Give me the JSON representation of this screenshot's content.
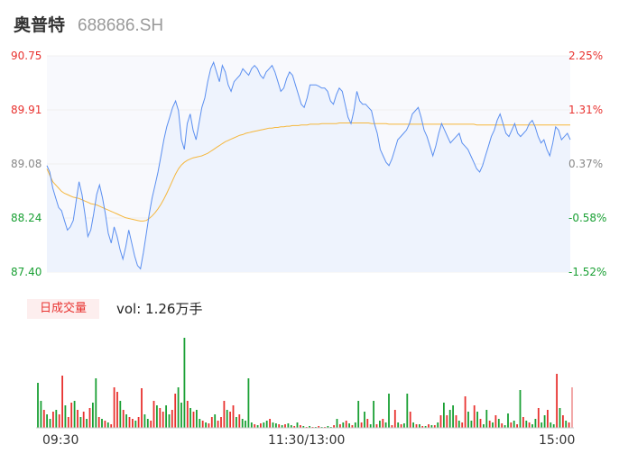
{
  "header": {
    "name": "奥普特",
    "code": "688686.SH"
  },
  "colors": {
    "price_line": "#5b8ff0",
    "avg_line": "#f5b73d",
    "up": "#e8322f",
    "down": "#1aa034",
    "neutral": "#888888"
  },
  "chart_data": {
    "type": "line",
    "price_axis": {
      "ticks": [
        "90.75",
        "89.91",
        "89.08",
        "88.24",
        "87.40"
      ],
      "range": [
        87.4,
        90.75
      ],
      "prev_close": 88.76
    },
    "pct_axis": {
      "ticks": [
        "2.25%",
        "1.31%",
        "0.37%",
        "-0.58%",
        "-1.52%"
      ]
    },
    "time_ticks": [
      "09:30",
      "11:30/13:00",
      "15:00"
    ],
    "price_series": [
      89.05,
      88.95,
      88.7,
      88.55,
      88.4,
      88.35,
      88.2,
      88.05,
      88.1,
      88.2,
      88.5,
      88.8,
      88.6,
      88.3,
      87.95,
      88.05,
      88.3,
      88.6,
      88.75,
      88.55,
      88.3,
      88.0,
      87.85,
      88.1,
      87.95,
      87.75,
      87.6,
      87.8,
      88.05,
      87.85,
      87.65,
      87.5,
      87.45,
      87.7,
      88.0,
      88.3,
      88.55,
      88.75,
      88.95,
      89.2,
      89.45,
      89.65,
      89.8,
      89.95,
      90.05,
      89.9,
      89.45,
      89.3,
      89.7,
      89.85,
      89.6,
      89.45,
      89.7,
      89.95,
      90.1,
      90.35,
      90.55,
      90.65,
      90.5,
      90.35,
      90.6,
      90.5,
      90.3,
      90.2,
      90.35,
      90.4,
      90.45,
      90.55,
      90.5,
      90.45,
      90.55,
      90.6,
      90.55,
      90.45,
      90.4,
      90.5,
      90.55,
      90.6,
      90.5,
      90.35,
      90.2,
      90.25,
      90.4,
      90.5,
      90.45,
      90.3,
      90.15,
      90.0,
      89.95,
      90.1,
      90.3,
      90.3,
      90.3,
      90.28,
      90.25,
      90.25,
      90.2,
      90.05,
      90.0,
      90.15,
      90.25,
      90.2,
      90.0,
      89.8,
      89.7,
      89.9,
      90.2,
      90.05,
      90.0,
      90.0,
      89.95,
      89.9,
      89.7,
      89.55,
      89.3,
      89.2,
      89.1,
      89.05,
      89.15,
      89.3,
      89.45,
      89.5,
      89.55,
      89.6,
      89.7,
      89.85,
      89.9,
      89.95,
      89.8,
      89.6,
      89.5,
      89.35,
      89.2,
      89.35,
      89.55,
      89.7,
      89.6,
      89.5,
      89.4,
      89.45,
      89.5,
      89.55,
      89.4,
      89.35,
      89.3,
      89.2,
      89.1,
      89.0,
      88.95,
      89.05,
      89.2,
      89.35,
      89.5,
      89.6,
      89.75,
      89.85,
      89.7,
      89.55,
      89.5,
      89.6,
      89.7,
      89.55,
      89.5,
      89.55,
      89.6,
      89.7,
      89.75,
      89.65,
      89.5,
      89.4,
      89.45,
      89.3,
      89.2,
      89.4,
      89.65,
      89.6,
      89.45,
      89.5,
      89.55,
      89.45
    ],
    "avg_series": [
      89.0,
      88.9,
      88.8,
      88.75,
      88.7,
      88.65,
      88.62,
      88.6,
      88.58,
      88.56,
      88.55,
      88.54,
      88.52,
      88.5,
      88.48,
      88.46,
      88.45,
      88.44,
      88.42,
      88.4,
      88.38,
      88.36,
      88.34,
      88.32,
      88.3,
      88.28,
      88.26,
      88.24,
      88.23,
      88.22,
      88.21,
      88.2,
      88.19,
      88.19,
      88.2,
      88.23,
      88.27,
      88.32,
      88.38,
      88.45,
      88.53,
      88.62,
      88.72,
      88.82,
      88.92,
      89.0,
      89.06,
      89.1,
      89.13,
      89.15,
      89.17,
      89.18,
      89.19,
      89.2,
      89.22,
      89.24,
      89.27,
      89.3,
      89.33,
      89.36,
      89.39,
      89.42,
      89.44,
      89.46,
      89.48,
      89.5,
      89.52,
      89.53,
      89.55,
      89.56,
      89.57,
      89.58,
      89.59,
      89.6,
      89.61,
      89.62,
      89.63,
      89.63,
      89.64,
      89.64,
      89.65,
      89.65,
      89.66,
      89.66,
      89.67,
      89.67,
      89.67,
      89.68,
      89.68,
      89.68,
      89.69,
      89.69,
      89.69,
      89.69,
      89.7,
      89.7,
      89.7,
      89.7,
      89.7,
      89.7,
      89.71,
      89.71,
      89.71,
      89.71,
      89.71,
      89.71,
      89.71,
      89.71,
      89.71,
      89.71,
      89.71,
      89.7,
      89.7,
      89.7,
      89.7,
      89.7,
      89.7,
      89.69,
      89.69,
      89.69,
      89.69,
      89.69,
      89.69,
      89.69,
      89.69,
      89.69,
      89.69,
      89.69,
      89.69,
      89.69,
      89.69,
      89.69,
      89.69,
      89.69,
      89.69,
      89.69,
      89.69,
      89.69,
      89.69,
      89.69,
      89.69,
      89.69,
      89.69,
      89.69,
      89.69,
      89.69,
      89.69,
      89.68,
      89.68,
      89.68,
      89.68,
      89.68,
      89.68,
      89.68,
      89.68,
      89.68,
      89.68,
      89.68,
      89.68,
      89.68,
      89.68,
      89.68,
      89.68,
      89.68,
      89.68,
      89.68,
      89.68,
      89.68,
      89.68,
      89.68,
      89.68,
      89.68,
      89.68,
      89.68,
      89.68,
      89.68,
      89.68,
      89.68,
      89.68,
      89.68
    ],
    "volume": {
      "label": "日成交量",
      "summary": "vol: 1.26万手",
      "bars": [
        [
          50,
          "d"
        ],
        [
          30,
          "d"
        ],
        [
          20,
          "u"
        ],
        [
          15,
          "d"
        ],
        [
          10,
          "d"
        ],
        [
          18,
          "u"
        ],
        [
          20,
          "d"
        ],
        [
          15,
          "u"
        ],
        [
          58,
          "u"
        ],
        [
          25,
          "d"
        ],
        [
          12,
          "u"
        ],
        [
          28,
          "u"
        ],
        [
          30,
          "d"
        ],
        [
          20,
          "u"
        ],
        [
          12,
          "d"
        ],
        [
          18,
          "u"
        ],
        [
          10,
          "d"
        ],
        [
          22,
          "u"
        ],
        [
          28,
          "d"
        ],
        [
          55,
          "d"
        ],
        [
          12,
          "u"
        ],
        [
          10,
          "d"
        ],
        [
          8,
          "u"
        ],
        [
          6,
          "d"
        ],
        [
          4,
          "u"
        ],
        [
          45,
          "u"
        ],
        [
          40,
          "u"
        ],
        [
          30,
          "d"
        ],
        [
          20,
          "u"
        ],
        [
          15,
          "d"
        ],
        [
          12,
          "u"
        ],
        [
          10,
          "u"
        ],
        [
          8,
          "d"
        ],
        [
          12,
          "u"
        ],
        [
          44,
          "u"
        ],
        [
          15,
          "d"
        ],
        [
          10,
          "d"
        ],
        [
          8,
          "u"
        ],
        [
          30,
          "u"
        ],
        [
          25,
          "d"
        ],
        [
          22,
          "u"
        ],
        [
          18,
          "u"
        ],
        [
          25,
          "d"
        ],
        [
          15,
          "d"
        ],
        [
          20,
          "u"
        ],
        [
          38,
          "u"
        ],
        [
          45,
          "d"
        ],
        [
          28,
          "d"
        ],
        [
          100,
          "d"
        ],
        [
          30,
          "u"
        ],
        [
          22,
          "d"
        ],
        [
          18,
          "u"
        ],
        [
          20,
          "d"
        ],
        [
          10,
          "d"
        ],
        [
          8,
          "u"
        ],
        [
          6,
          "d"
        ],
        [
          5,
          "u"
        ],
        [
          12,
          "u"
        ],
        [
          15,
          "d"
        ],
        [
          8,
          "u"
        ],
        [
          12,
          "u"
        ],
        [
          30,
          "u"
        ],
        [
          20,
          "d"
        ],
        [
          18,
          "u"
        ],
        [
          25,
          "u"
        ],
        [
          12,
          "d"
        ],
        [
          15,
          "u"
        ],
        [
          10,
          "d"
        ],
        [
          8,
          "d"
        ],
        [
          55,
          "d"
        ],
        [
          6,
          "d"
        ],
        [
          4,
          "u"
        ],
        [
          3,
          "d"
        ],
        [
          5,
          "u"
        ],
        [
          6,
          "d"
        ],
        [
          8,
          "d"
        ],
        [
          10,
          "u"
        ],
        [
          6,
          "d"
        ],
        [
          5,
          "d"
        ],
        [
          4,
          "u"
        ],
        [
          3,
          "d"
        ],
        [
          4,
          "u"
        ],
        [
          5,
          "d"
        ],
        [
          3,
          "d"
        ],
        [
          2,
          "u"
        ],
        [
          6,
          "d"
        ],
        [
          3,
          "u"
        ],
        [
          2,
          "d"
        ],
        [
          1,
          "u"
        ],
        [
          2,
          "d"
        ],
        [
          1,
          "u"
        ],
        [
          1,
          "d"
        ],
        [
          2,
          "u"
        ],
        [
          1,
          "d"
        ],
        [
          1,
          "u"
        ],
        [
          2,
          "d"
        ],
        [
          1,
          "d"
        ],
        [
          3,
          "u"
        ],
        [
          10,
          "d"
        ],
        [
          4,
          "u"
        ],
        [
          6,
          "d"
        ],
        [
          8,
          "u"
        ],
        [
          5,
          "d"
        ],
        [
          3,
          "u"
        ],
        [
          6,
          "d"
        ],
        [
          30,
          "d"
        ],
        [
          6,
          "u"
        ],
        [
          18,
          "d"
        ],
        [
          10,
          "u"
        ],
        [
          4,
          "d"
        ],
        [
          30,
          "d"
        ],
        [
          4,
          "u"
        ],
        [
          8,
          "d"
        ],
        [
          10,
          "u"
        ],
        [
          6,
          "d"
        ],
        [
          38,
          "d"
        ],
        [
          3,
          "u"
        ],
        [
          20,
          "u"
        ],
        [
          6,
          "d"
        ],
        [
          4,
          "u"
        ],
        [
          5,
          "d"
        ],
        [
          38,
          "d"
        ],
        [
          18,
          "u"
        ],
        [
          6,
          "d"
        ],
        [
          4,
          "u"
        ],
        [
          4,
          "d"
        ],
        [
          2,
          "u"
        ],
        [
          2,
          "d"
        ],
        [
          4,
          "u"
        ],
        [
          3,
          "d"
        ],
        [
          3,
          "u"
        ],
        [
          6,
          "d"
        ],
        [
          14,
          "u"
        ],
        [
          28,
          "d"
        ],
        [
          14,
          "u"
        ],
        [
          20,
          "d"
        ],
        [
          25,
          "d"
        ],
        [
          14,
          "u"
        ],
        [
          8,
          "d"
        ],
        [
          6,
          "u"
        ],
        [
          35,
          "u"
        ],
        [
          18,
          "d"
        ],
        [
          8,
          "d"
        ],
        [
          25,
          "u"
        ],
        [
          18,
          "d"
        ],
        [
          10,
          "u"
        ],
        [
          4,
          "d"
        ],
        [
          20,
          "d"
        ],
        [
          8,
          "u"
        ],
        [
          6,
          "d"
        ],
        [
          14,
          "u"
        ],
        [
          10,
          "d"
        ],
        [
          5,
          "u"
        ],
        [
          3,
          "d"
        ],
        [
          16,
          "d"
        ],
        [
          6,
          "u"
        ],
        [
          8,
          "d"
        ],
        [
          4,
          "u"
        ],
        [
          42,
          "d"
        ],
        [
          12,
          "u"
        ],
        [
          8,
          "d"
        ],
        [
          6,
          "u"
        ],
        [
          4,
          "d"
        ],
        [
          10,
          "d"
        ],
        [
          22,
          "u"
        ],
        [
          6,
          "d"
        ],
        [
          14,
          "d"
        ],
        [
          20,
          "u"
        ],
        [
          6,
          "d"
        ],
        [
          4,
          "d"
        ],
        [
          60,
          "u"
        ],
        [
          22,
          "d"
        ],
        [
          14,
          "u"
        ],
        [
          8,
          "d"
        ],
        [
          6,
          "u"
        ],
        [
          45,
          "n"
        ]
      ]
    }
  }
}
